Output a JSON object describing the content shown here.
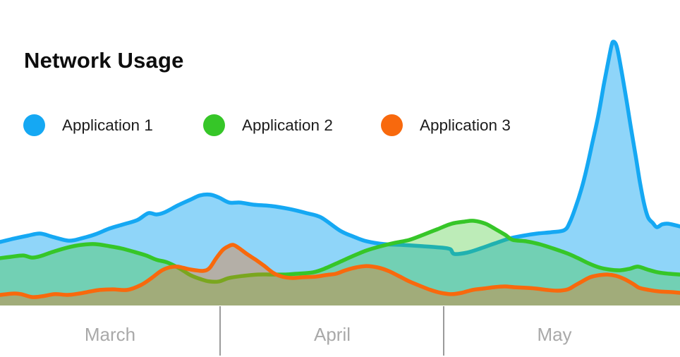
{
  "header": {
    "title": "Network Usage"
  },
  "legend": {
    "items": [
      {
        "label": "Application 1",
        "color": "#15A8F3"
      },
      {
        "label": "Application 2",
        "color": "#36C628"
      },
      {
        "label": "Application 3",
        "color": "#F8690D"
      }
    ]
  },
  "chart_data": {
    "type": "area",
    "title": "Network Usage",
    "xlabel": "",
    "ylabel": "",
    "x_unit": "timeline position (% across March–May)",
    "y_unit": "usage (% of peak)",
    "ylim": [
      0,
      100
    ],
    "grid": false,
    "legend_position": "top-left",
    "x_axis": {
      "tick_labels": [
        "March",
        "April",
        "May"
      ],
      "tick_divider_positions_pct": [
        32.3,
        65.1
      ],
      "label_center_positions_pct": [
        16.2,
        48.9,
        81.5
      ]
    },
    "series": [
      {
        "name": "Application 1",
        "color": "#15A8F3",
        "fill_opacity": 0.48,
        "points": [
          [
            0,
            24
          ],
          [
            2.1,
            25.3
          ],
          [
            4.1,
            26.4
          ],
          [
            5.9,
            27.2
          ],
          [
            7.8,
            25.9
          ],
          [
            10.1,
            24.5
          ],
          [
            11.9,
            25.3
          ],
          [
            14,
            26.9
          ],
          [
            16.1,
            29.1
          ],
          [
            18.2,
            30.7
          ],
          [
            20.2,
            32.3
          ],
          [
            21.8,
            34.9
          ],
          [
            23,
            34.4
          ],
          [
            24.2,
            35.2
          ],
          [
            26.2,
            37.9
          ],
          [
            28,
            40
          ],
          [
            29.4,
            41.6
          ],
          [
            30.9,
            41.9
          ],
          [
            32.2,
            40.8
          ],
          [
            33.7,
            38.9
          ],
          [
            35.3,
            38.9
          ],
          [
            37.3,
            38.1
          ],
          [
            39.9,
            37.6
          ],
          [
            42.5,
            36.5
          ],
          [
            45.1,
            34.9
          ],
          [
            47.2,
            33.3
          ],
          [
            50,
            28.3
          ],
          [
            51.9,
            26.1
          ],
          [
            53.9,
            24.3
          ],
          [
            56.5,
            23.2
          ],
          [
            59.1,
            22.9
          ],
          [
            62.2,
            22.4
          ],
          [
            64.8,
            21.9
          ],
          [
            66.2,
            21.3
          ],
          [
            66.8,
            19.5
          ],
          [
            68.7,
            20
          ],
          [
            70.7,
            21.6
          ],
          [
            72.8,
            23.5
          ],
          [
            74.9,
            25.3
          ],
          [
            77,
            26.4
          ],
          [
            79,
            27.2
          ],
          [
            81.1,
            27.7
          ],
          [
            83,
            28.5
          ],
          [
            83.8,
            31.5
          ],
          [
            84.6,
            36.8
          ],
          [
            85.5,
            44
          ],
          [
            86.3,
            52
          ],
          [
            87.1,
            61.3
          ],
          [
            88,
            72
          ],
          [
            88.8,
            83.5
          ],
          [
            89.4,
            91.5
          ],
          [
            89.9,
            97.9
          ],
          [
            90.2,
            99.7
          ],
          [
            90.7,
            97.9
          ],
          [
            91.3,
            90.1
          ],
          [
            92.1,
            78.1
          ],
          [
            92.8,
            66.9
          ],
          [
            93.5,
            56.3
          ],
          [
            94.1,
            46.7
          ],
          [
            94.7,
            38.7
          ],
          [
            95.3,
            33.3
          ],
          [
            96,
            31.2
          ],
          [
            96.6,
            29.6
          ],
          [
            97.4,
            30.7
          ],
          [
            98.3,
            30.9
          ],
          [
            100,
            29.9
          ]
        ]
      },
      {
        "name": "Application 2",
        "color": "#36C628",
        "fill_opacity": 0.33,
        "points": [
          [
            0,
            17.9
          ],
          [
            1.6,
            18.4
          ],
          [
            3.4,
            18.9
          ],
          [
            4.7,
            18.1
          ],
          [
            6,
            18.7
          ],
          [
            7.8,
            20.3
          ],
          [
            9.9,
            21.9
          ],
          [
            11.9,
            22.9
          ],
          [
            14,
            23.2
          ],
          [
            16.1,
            22.4
          ],
          [
            17.8,
            21.6
          ],
          [
            19.7,
            20.3
          ],
          [
            21.5,
            18.9
          ],
          [
            23,
            17.3
          ],
          [
            24.6,
            16.3
          ],
          [
            26.5,
            13.9
          ],
          [
            28,
            11.5
          ],
          [
            29.6,
            9.9
          ],
          [
            30.8,
            9.1
          ],
          [
            32.2,
            9.1
          ],
          [
            33.7,
            10.4
          ],
          [
            35.8,
            11.2
          ],
          [
            37.9,
            11.7
          ],
          [
            39.9,
            11.7
          ],
          [
            42,
            11.7
          ],
          [
            43.6,
            12
          ],
          [
            46,
            12.5
          ],
          [
            47.7,
            13.9
          ],
          [
            50,
            16.5
          ],
          [
            51.9,
            18.7
          ],
          [
            53.9,
            20.8
          ],
          [
            56,
            22.4
          ],
          [
            58.1,
            23.7
          ],
          [
            60.2,
            24.8
          ],
          [
            62.2,
            26.7
          ],
          [
            64.3,
            28.8
          ],
          [
            66.4,
            30.9
          ],
          [
            68.3,
            31.7
          ],
          [
            69.7,
            32
          ],
          [
            71.4,
            30.9
          ],
          [
            72.9,
            28.8
          ],
          [
            74.3,
            26.7
          ],
          [
            75.4,
            24.8
          ],
          [
            77.3,
            24.3
          ],
          [
            79.3,
            23.2
          ],
          [
            81.3,
            21.6
          ],
          [
            83.4,
            19.7
          ],
          [
            85,
            17.9
          ],
          [
            86.5,
            16
          ],
          [
            88.1,
            14.4
          ],
          [
            89.6,
            13.6
          ],
          [
            91.2,
            13.3
          ],
          [
            92.6,
            13.9
          ],
          [
            93.8,
            14.7
          ],
          [
            95.2,
            13.6
          ],
          [
            96.8,
            12.5
          ],
          [
            98.4,
            12
          ],
          [
            100,
            11.7
          ]
        ]
      },
      {
        "name": "Application 3",
        "color": "#F8690D",
        "fill_opacity": 0.35,
        "points": [
          [
            0,
            4
          ],
          [
            1.9,
            4.5
          ],
          [
            3.1,
            4.3
          ],
          [
            4.7,
            3.2
          ],
          [
            6.2,
            3.5
          ],
          [
            8.1,
            4.3
          ],
          [
            9.9,
            4
          ],
          [
            11.6,
            4.5
          ],
          [
            13.3,
            5.3
          ],
          [
            14.7,
            5.9
          ],
          [
            16.6,
            6.1
          ],
          [
            18.7,
            5.9
          ],
          [
            20.7,
            7.7
          ],
          [
            22.3,
            10.4
          ],
          [
            23.7,
            13.1
          ],
          [
            24.9,
            14.4
          ],
          [
            26.1,
            14.7
          ],
          [
            27.5,
            13.9
          ],
          [
            28.8,
            13.3
          ],
          [
            29.9,
            13.1
          ],
          [
            30.8,
            14.1
          ],
          [
            31.8,
            17.9
          ],
          [
            32.8,
            21.1
          ],
          [
            33.6,
            22.4
          ],
          [
            34.3,
            22.9
          ],
          [
            35.2,
            21.6
          ],
          [
            36.3,
            19.5
          ],
          [
            37.6,
            17.3
          ],
          [
            38.9,
            14.9
          ],
          [
            40.2,
            12.3
          ],
          [
            41.5,
            10.9
          ],
          [
            43,
            10.4
          ],
          [
            44.6,
            10.7
          ],
          [
            46.4,
            10.9
          ],
          [
            47.9,
            11.5
          ],
          [
            49.4,
            12
          ],
          [
            50.8,
            13.3
          ],
          [
            52.4,
            14.4
          ],
          [
            53.9,
            14.9
          ],
          [
            55.5,
            14.4
          ],
          [
            57.1,
            13.1
          ],
          [
            58.6,
            11.2
          ],
          [
            60.2,
            9.1
          ],
          [
            61.7,
            7.5
          ],
          [
            63.3,
            5.9
          ],
          [
            64.8,
            4.8
          ],
          [
            66.4,
            4.3
          ],
          [
            67.9,
            4.8
          ],
          [
            69.5,
            5.9
          ],
          [
            71.1,
            6.4
          ],
          [
            72.6,
            6.9
          ],
          [
            74.2,
            7.2
          ],
          [
            75.7,
            6.9
          ],
          [
            77.3,
            6.7
          ],
          [
            78.8,
            6.4
          ],
          [
            80.4,
            5.9
          ],
          [
            82,
            5.6
          ],
          [
            83.5,
            6.1
          ],
          [
            84.5,
            7.5
          ],
          [
            85.6,
            9.1
          ],
          [
            86.8,
            10.7
          ],
          [
            88.2,
            11.5
          ],
          [
            89.3,
            11.7
          ],
          [
            90.6,
            11.2
          ],
          [
            91.9,
            9.9
          ],
          [
            93.2,
            8
          ],
          [
            94,
            6.7
          ],
          [
            95.4,
            5.9
          ],
          [
            97,
            5.3
          ],
          [
            98.5,
            5.1
          ],
          [
            100,
            4.8
          ]
        ]
      }
    ]
  }
}
